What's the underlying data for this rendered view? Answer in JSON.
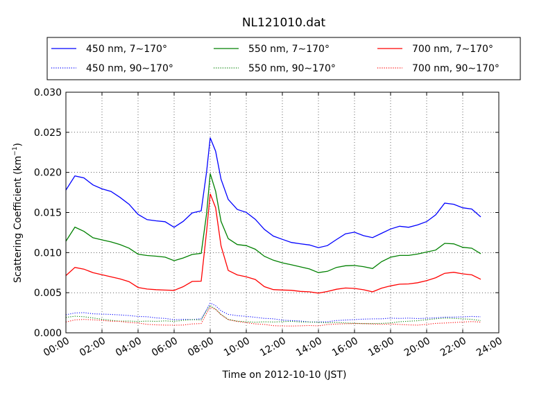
{
  "chart_data": {
    "type": "line",
    "title": "NL121010.dat",
    "xlabel": "Time on 2012-10-10 (JST)",
    "ylabel": "Scattering Coefficient (km",
    "ylabel_sup": "−1",
    "ylabel_close": ")",
    "x_unit": "hour",
    "xlim": [
      0,
      24
    ],
    "ylim": [
      0,
      0.03
    ],
    "grid": true,
    "legend_position": "top",
    "x_tick_labels": [
      "00:00",
      "02:00",
      "04:00",
      "06:00",
      "08:00",
      "10:00",
      "12:00",
      "14:00",
      "16:00",
      "18:00",
      "20:00",
      "22:00",
      "24:00"
    ],
    "x_tick_values": [
      0,
      2,
      4,
      6,
      8,
      10,
      12,
      14,
      16,
      18,
      20,
      22,
      24
    ],
    "y_tick_labels": [
      "0.000",
      "0.005",
      "0.010",
      "0.015",
      "0.020",
      "0.025",
      "0.030"
    ],
    "y_tick_values": [
      0,
      0.005,
      0.01,
      0.015,
      0.02,
      0.025,
      0.03
    ],
    "x": [
      0,
      0.5,
      1,
      1.5,
      2,
      2.5,
      3,
      3.5,
      4,
      4.5,
      5,
      5.5,
      6,
      6.5,
      7,
      7.5,
      7.8,
      8,
      8.3,
      8.6,
      9,
      9.5,
      10,
      10.5,
      11,
      11.5,
      12,
      12.5,
      13,
      13.5,
      14,
      14.5,
      15,
      15.5,
      16,
      16.5,
      17,
      17.5,
      18,
      18.5,
      19,
      19.5,
      20,
      20.5,
      21,
      21.5,
      22,
      22.5,
      23
    ],
    "series": [
      {
        "name": "450 nm, 7∼170°",
        "color": "#0000ff",
        "style": "solid",
        "values": [
          0.0178,
          0.0195,
          0.0192,
          0.0183,
          0.0178,
          0.0175,
          0.0168,
          0.016,
          0.0148,
          0.0142,
          0.0141,
          0.014,
          0.0133,
          0.014,
          0.015,
          0.0152,
          0.02,
          0.0242,
          0.0225,
          0.019,
          0.0165,
          0.0153,
          0.015,
          0.0142,
          0.013,
          0.0122,
          0.0118,
          0.0114,
          0.0112,
          0.011,
          0.0106,
          0.0108,
          0.0115,
          0.0122,
          0.0124,
          0.012,
          0.0118,
          0.0124,
          0.013,
          0.0134,
          0.0133,
          0.0136,
          0.014,
          0.0148,
          0.0162,
          0.016,
          0.0155,
          0.0153,
          0.0143
        ]
      },
      {
        "name": "550 nm, 7∼170°",
        "color": "#008000",
        "style": "solid",
        "values": [
          0.0115,
          0.0133,
          0.0128,
          0.012,
          0.0117,
          0.0114,
          0.011,
          0.0105,
          0.0097,
          0.0095,
          0.0094,
          0.0093,
          0.0089,
          0.0093,
          0.0098,
          0.01,
          0.015,
          0.02,
          0.0178,
          0.014,
          0.0118,
          0.011,
          0.0108,
          0.0103,
          0.0094,
          0.0089,
          0.0086,
          0.0084,
          0.0082,
          0.008,
          0.0076,
          0.0078,
          0.0083,
          0.0085,
          0.0085,
          0.0083,
          0.008,
          0.0088,
          0.0093,
          0.0095,
          0.0095,
          0.0097,
          0.01,
          0.0103,
          0.0112,
          0.0112,
          0.0108,
          0.0107,
          0.01
        ]
      },
      {
        "name": "700 nm, 7∼170°",
        "color": "#ff0000",
        "style": "solid",
        "values": [
          0.007,
          0.008,
          0.0078,
          0.0074,
          0.0072,
          0.007,
          0.0068,
          0.0065,
          0.0058,
          0.0056,
          0.0055,
          0.0054,
          0.0053,
          0.0057,
          0.0063,
          0.0063,
          0.0125,
          0.0172,
          0.0155,
          0.0108,
          0.0078,
          0.0073,
          0.0071,
          0.0068,
          0.0059,
          0.0055,
          0.0054,
          0.0053,
          0.0051,
          0.005,
          0.0048,
          0.005,
          0.0053,
          0.0055,
          0.0055,
          0.0054,
          0.0052,
          0.0057,
          0.006,
          0.0062,
          0.0062,
          0.0063,
          0.0065,
          0.0068,
          0.0073,
          0.0074,
          0.0072,
          0.0071,
          0.0066
        ]
      },
      {
        "name": "450 nm, 90∼170°",
        "color": "#0000ff",
        "style": "dotted",
        "values": [
          0.0024,
          0.0026,
          0.0026,
          0.0024,
          0.0023,
          0.0022,
          0.0021,
          0.002,
          0.0019,
          0.0019,
          0.0018,
          0.0018,
          0.0017,
          0.0018,
          0.0018,
          0.0019,
          0.003,
          0.0038,
          0.0034,
          0.0027,
          0.0022,
          0.002,
          0.0019,
          0.0018,
          0.0017,
          0.0017,
          0.0016,
          0.0016,
          0.0016,
          0.0015,
          0.0015,
          0.0015,
          0.0016,
          0.0016,
          0.0016,
          0.0016,
          0.0016,
          0.0016,
          0.0017,
          0.0017,
          0.0018,
          0.0018,
          0.0019,
          0.002,
          0.0021,
          0.0021,
          0.0021,
          0.0021,
          0.002
        ]
      },
      {
        "name": "550 nm, 90∼170°",
        "color": "#008000",
        "style": "dotted",
        "values": [
          0.0018,
          0.002,
          0.002,
          0.0019,
          0.0018,
          0.0017,
          0.0016,
          0.0016,
          0.0015,
          0.0015,
          0.0014,
          0.0014,
          0.0013,
          0.0014,
          0.0015,
          0.0015,
          0.0027,
          0.0034,
          0.003,
          0.0024,
          0.0018,
          0.0016,
          0.0015,
          0.0014,
          0.0014,
          0.0013,
          0.0013,
          0.0013,
          0.0012,
          0.0012,
          0.0012,
          0.0012,
          0.0013,
          0.0013,
          0.0013,
          0.0013,
          0.0013,
          0.0013,
          0.0013,
          0.0014,
          0.0014,
          0.0014,
          0.0015,
          0.0016,
          0.0017,
          0.0017,
          0.0017,
          0.0017,
          0.0016
        ]
      },
      {
        "name": "700 nm, 90∼170°",
        "color": "#ff0000",
        "style": "dotted",
        "values": [
          0.0014,
          0.0016,
          0.0016,
          0.0015,
          0.0014,
          0.0013,
          0.0013,
          0.0012,
          0.0012,
          0.0011,
          0.0011,
          0.0011,
          0.0011,
          0.0011,
          0.0012,
          0.0012,
          0.0024,
          0.0031,
          0.0028,
          0.0021,
          0.0015,
          0.0013,
          0.0012,
          0.0011,
          0.0011,
          0.001,
          0.001,
          0.001,
          0.001,
          0.001,
          0.0009,
          0.001,
          0.001,
          0.001,
          0.001,
          0.001,
          0.001,
          0.001,
          0.0011,
          0.0011,
          0.0011,
          0.0011,
          0.0012,
          0.0013,
          0.0013,
          0.0013,
          0.0013,
          0.0013,
          0.0012
        ]
      }
    ]
  }
}
